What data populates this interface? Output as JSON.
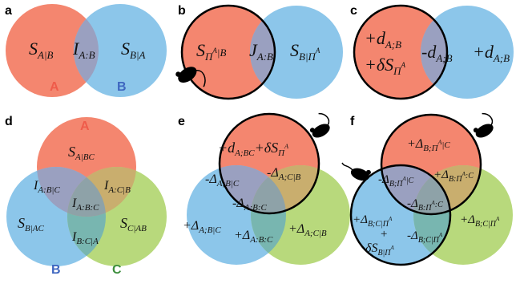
{
  "colors": {
    "set_a": "#f4866f",
    "set_b": "#8cc6ea",
    "set_c": "#b8d97c",
    "overlap_ab": "#9aa0c0",
    "overlap_bc": "#78b6b0",
    "overlap_ac": "#c9ae6e",
    "overlap_abc": "#8ea2a8",
    "label_a": "#ef5b4a",
    "label_b": "#3f67c0",
    "label_c": "#3e8f3e"
  },
  "icons": [
    "mouse-icon"
  ],
  "panels": {
    "a": {
      "label": "a",
      "set_a_name": "A",
      "set_b_name": "B",
      "left": "S",
      "left_sub": "A|B",
      "middle": "I",
      "middle_sub": "A:B",
      "right": "S",
      "right_sub": "B|A"
    },
    "b": {
      "label": "b",
      "left": "S",
      "left_sub": "Π",
      "middle": "J",
      "middle_sub": "A:B",
      "right": "S",
      "right_sub": "B|Π",
      "sup": "A",
      "sub_tail": "|B"
    },
    "c": {
      "label": "c",
      "left_top": "+d",
      "left_top_sub": "A;B",
      "left_bottom": "+δS",
      "left_bottom_sub": "Π",
      "middle": "-d",
      "middle_sub": "A;B",
      "right": "+d",
      "right_sub": "A;B",
      "sup": "A"
    },
    "d": {
      "label": "d",
      "set_a_name": "A",
      "set_b_name": "B",
      "set_c_name": "C",
      "a_only": "S",
      "a_only_sub": "A|BC",
      "ab": "I",
      "ab_sub": "A:B|C",
      "ac": "I",
      "ac_sub": "A:C|B",
      "abc": "I",
      "abc_sub": "A:B:C",
      "b_only": "S",
      "b_only_sub": "B|AC",
      "c_only": "S",
      "c_only_sub": "C|AB",
      "bc": "I",
      "bc_sub": "B:C|A"
    },
    "e": {
      "label": "e",
      "a_only_1": "+d",
      "a_only_1_sub": "A;BC",
      "a_only_2": "+δS",
      "a_only_2_sub": "Π",
      "sup": "A",
      "ab": "-Δ",
      "ab_sub": "A;B|C",
      "ac": "-Δ",
      "ac_sub": "A;C|B",
      "abc": "-Δ",
      "abc_sub": "A:B:C",
      "b_only": "+Δ",
      "b_only_sub": "A;B|C",
      "bc": "+Δ",
      "bc_sub": "A:B:C",
      "c_only": "+Δ",
      "c_only_sub": "A;C|B"
    },
    "f": {
      "label": "f",
      "a_only": "+Δ",
      "a_only_sub": "B;Π",
      "a_only_tail": "|C",
      "ab": "-Δ",
      "ab_sub": "B;Π",
      "ab_tail": "|C",
      "ac": "+Δ",
      "ac_sub": "B:Π",
      "ac_tail": ":C",
      "abc": "-Δ",
      "abc_sub": "B:Π",
      "abc_tail": ":C",
      "c_only": "+Δ",
      "c_only_sub": "B;C|Π",
      "b_only_1": "+Δ",
      "b_only_1_sub": "B;C|Π",
      "b_plus": "+",
      "b_only_2": "δS",
      "b_only_2_sub": "B|Π",
      "bc": "-Δ",
      "bc_sub": "B;C|Π",
      "sup": "A"
    }
  }
}
